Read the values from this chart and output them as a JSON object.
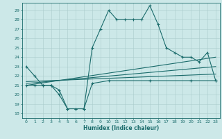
{
  "title": "",
  "xlabel": "Humidex (Indice chaleur)",
  "bg_color": "#cce8e8",
  "grid_color": "#aacccc",
  "line_color": "#1a6b6b",
  "x_ticks": [
    0,
    1,
    2,
    3,
    4,
    5,
    6,
    7,
    8,
    9,
    10,
    11,
    12,
    13,
    14,
    15,
    16,
    17,
    18,
    19,
    20,
    21,
    22,
    23
  ],
  "y_ticks": [
    18,
    19,
    20,
    21,
    22,
    23,
    24,
    25,
    26,
    27,
    28,
    29
  ],
  "ylim": [
    17.5,
    29.8
  ],
  "xlim": [
    -0.5,
    23.5
  ],
  "line1_x": [
    0,
    1,
    2,
    3,
    4,
    5,
    6,
    7,
    8,
    9,
    10,
    11,
    12,
    13,
    14,
    15,
    16,
    17,
    18,
    19,
    20,
    21,
    22,
    23
  ],
  "line1_y": [
    23,
    22,
    21,
    21,
    20,
    18.5,
    18.5,
    18.5,
    25,
    27,
    29,
    28,
    28,
    28,
    28,
    29.5,
    27.5,
    25,
    24.5,
    24,
    24,
    23.5,
    24.5,
    21.5
  ],
  "line2_x": [
    0,
    1,
    2,
    3,
    4,
    5,
    6,
    7,
    8,
    10,
    15,
    20,
    23
  ],
  "line2_y": [
    21,
    21,
    21,
    21,
    20.5,
    18.5,
    18.5,
    18.5,
    21.2,
    21.5,
    21.5,
    21.5,
    21.5
  ],
  "line3_x": [
    0,
    23
  ],
  "line3_y": [
    21.0,
    24.0
  ],
  "line4_x": [
    0,
    23
  ],
  "line4_y": [
    21.2,
    23.0
  ],
  "line5_x": [
    0,
    23
  ],
  "line5_y": [
    21.4,
    22.2
  ]
}
